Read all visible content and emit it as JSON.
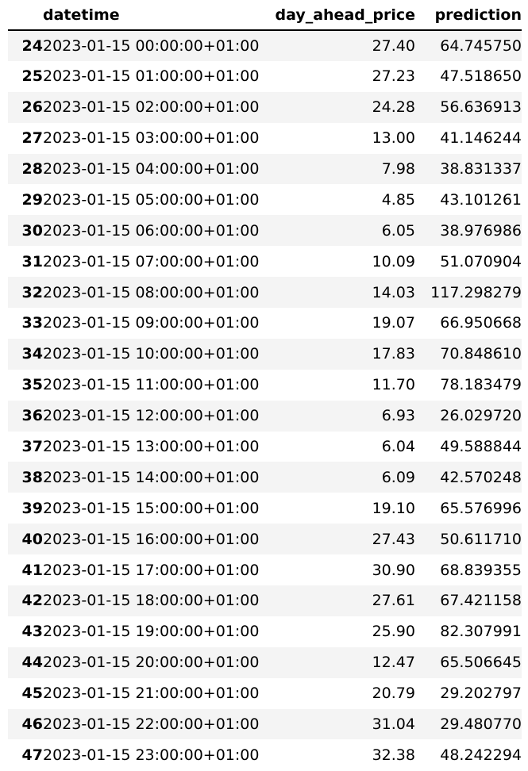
{
  "table": {
    "columns": [
      "datetime",
      "day_ahead_price",
      "prediction"
    ],
    "rows": [
      {
        "index": "24",
        "datetime": "2023-01-15 00:00:00+01:00",
        "day_ahead_price": "27.40",
        "prediction": "64.745750"
      },
      {
        "index": "25",
        "datetime": "2023-01-15 01:00:00+01:00",
        "day_ahead_price": "27.23",
        "prediction": "47.518650"
      },
      {
        "index": "26",
        "datetime": "2023-01-15 02:00:00+01:00",
        "day_ahead_price": "24.28",
        "prediction": "56.636913"
      },
      {
        "index": "27",
        "datetime": "2023-01-15 03:00:00+01:00",
        "day_ahead_price": "13.00",
        "prediction": "41.146244"
      },
      {
        "index": "28",
        "datetime": "2023-01-15 04:00:00+01:00",
        "day_ahead_price": "7.98",
        "prediction": "38.831337"
      },
      {
        "index": "29",
        "datetime": "2023-01-15 05:00:00+01:00",
        "day_ahead_price": "4.85",
        "prediction": "43.101261"
      },
      {
        "index": "30",
        "datetime": "2023-01-15 06:00:00+01:00",
        "day_ahead_price": "6.05",
        "prediction": "38.976986"
      },
      {
        "index": "31",
        "datetime": "2023-01-15 07:00:00+01:00",
        "day_ahead_price": "10.09",
        "prediction": "51.070904"
      },
      {
        "index": "32",
        "datetime": "2023-01-15 08:00:00+01:00",
        "day_ahead_price": "14.03",
        "prediction": "117.298279"
      },
      {
        "index": "33",
        "datetime": "2023-01-15 09:00:00+01:00",
        "day_ahead_price": "19.07",
        "prediction": "66.950668"
      },
      {
        "index": "34",
        "datetime": "2023-01-15 10:00:00+01:00",
        "day_ahead_price": "17.83",
        "prediction": "70.848610"
      },
      {
        "index": "35",
        "datetime": "2023-01-15 11:00:00+01:00",
        "day_ahead_price": "11.70",
        "prediction": "78.183479"
      },
      {
        "index": "36",
        "datetime": "2023-01-15 12:00:00+01:00",
        "day_ahead_price": "6.93",
        "prediction": "26.029720"
      },
      {
        "index": "37",
        "datetime": "2023-01-15 13:00:00+01:00",
        "day_ahead_price": "6.04",
        "prediction": "49.588844"
      },
      {
        "index": "38",
        "datetime": "2023-01-15 14:00:00+01:00",
        "day_ahead_price": "6.09",
        "prediction": "42.570248"
      },
      {
        "index": "39",
        "datetime": "2023-01-15 15:00:00+01:00",
        "day_ahead_price": "19.10",
        "prediction": "65.576996"
      },
      {
        "index": "40",
        "datetime": "2023-01-15 16:00:00+01:00",
        "day_ahead_price": "27.43",
        "prediction": "50.611710"
      },
      {
        "index": "41",
        "datetime": "2023-01-15 17:00:00+01:00",
        "day_ahead_price": "30.90",
        "prediction": "68.839355"
      },
      {
        "index": "42",
        "datetime": "2023-01-15 18:00:00+01:00",
        "day_ahead_price": "27.61",
        "prediction": "67.421158"
      },
      {
        "index": "43",
        "datetime": "2023-01-15 19:00:00+01:00",
        "day_ahead_price": "25.90",
        "prediction": "82.307991"
      },
      {
        "index": "44",
        "datetime": "2023-01-15 20:00:00+01:00",
        "day_ahead_price": "12.47",
        "prediction": "65.506645"
      },
      {
        "index": "45",
        "datetime": "2023-01-15 21:00:00+01:00",
        "day_ahead_price": "20.79",
        "prediction": "29.202797"
      },
      {
        "index": "46",
        "datetime": "2023-01-15 22:00:00+01:00",
        "day_ahead_price": "31.04",
        "prediction": "29.480770"
      },
      {
        "index": "47",
        "datetime": "2023-01-15 23:00:00+01:00",
        "day_ahead_price": "32.38",
        "prediction": "48.242294"
      }
    ]
  }
}
